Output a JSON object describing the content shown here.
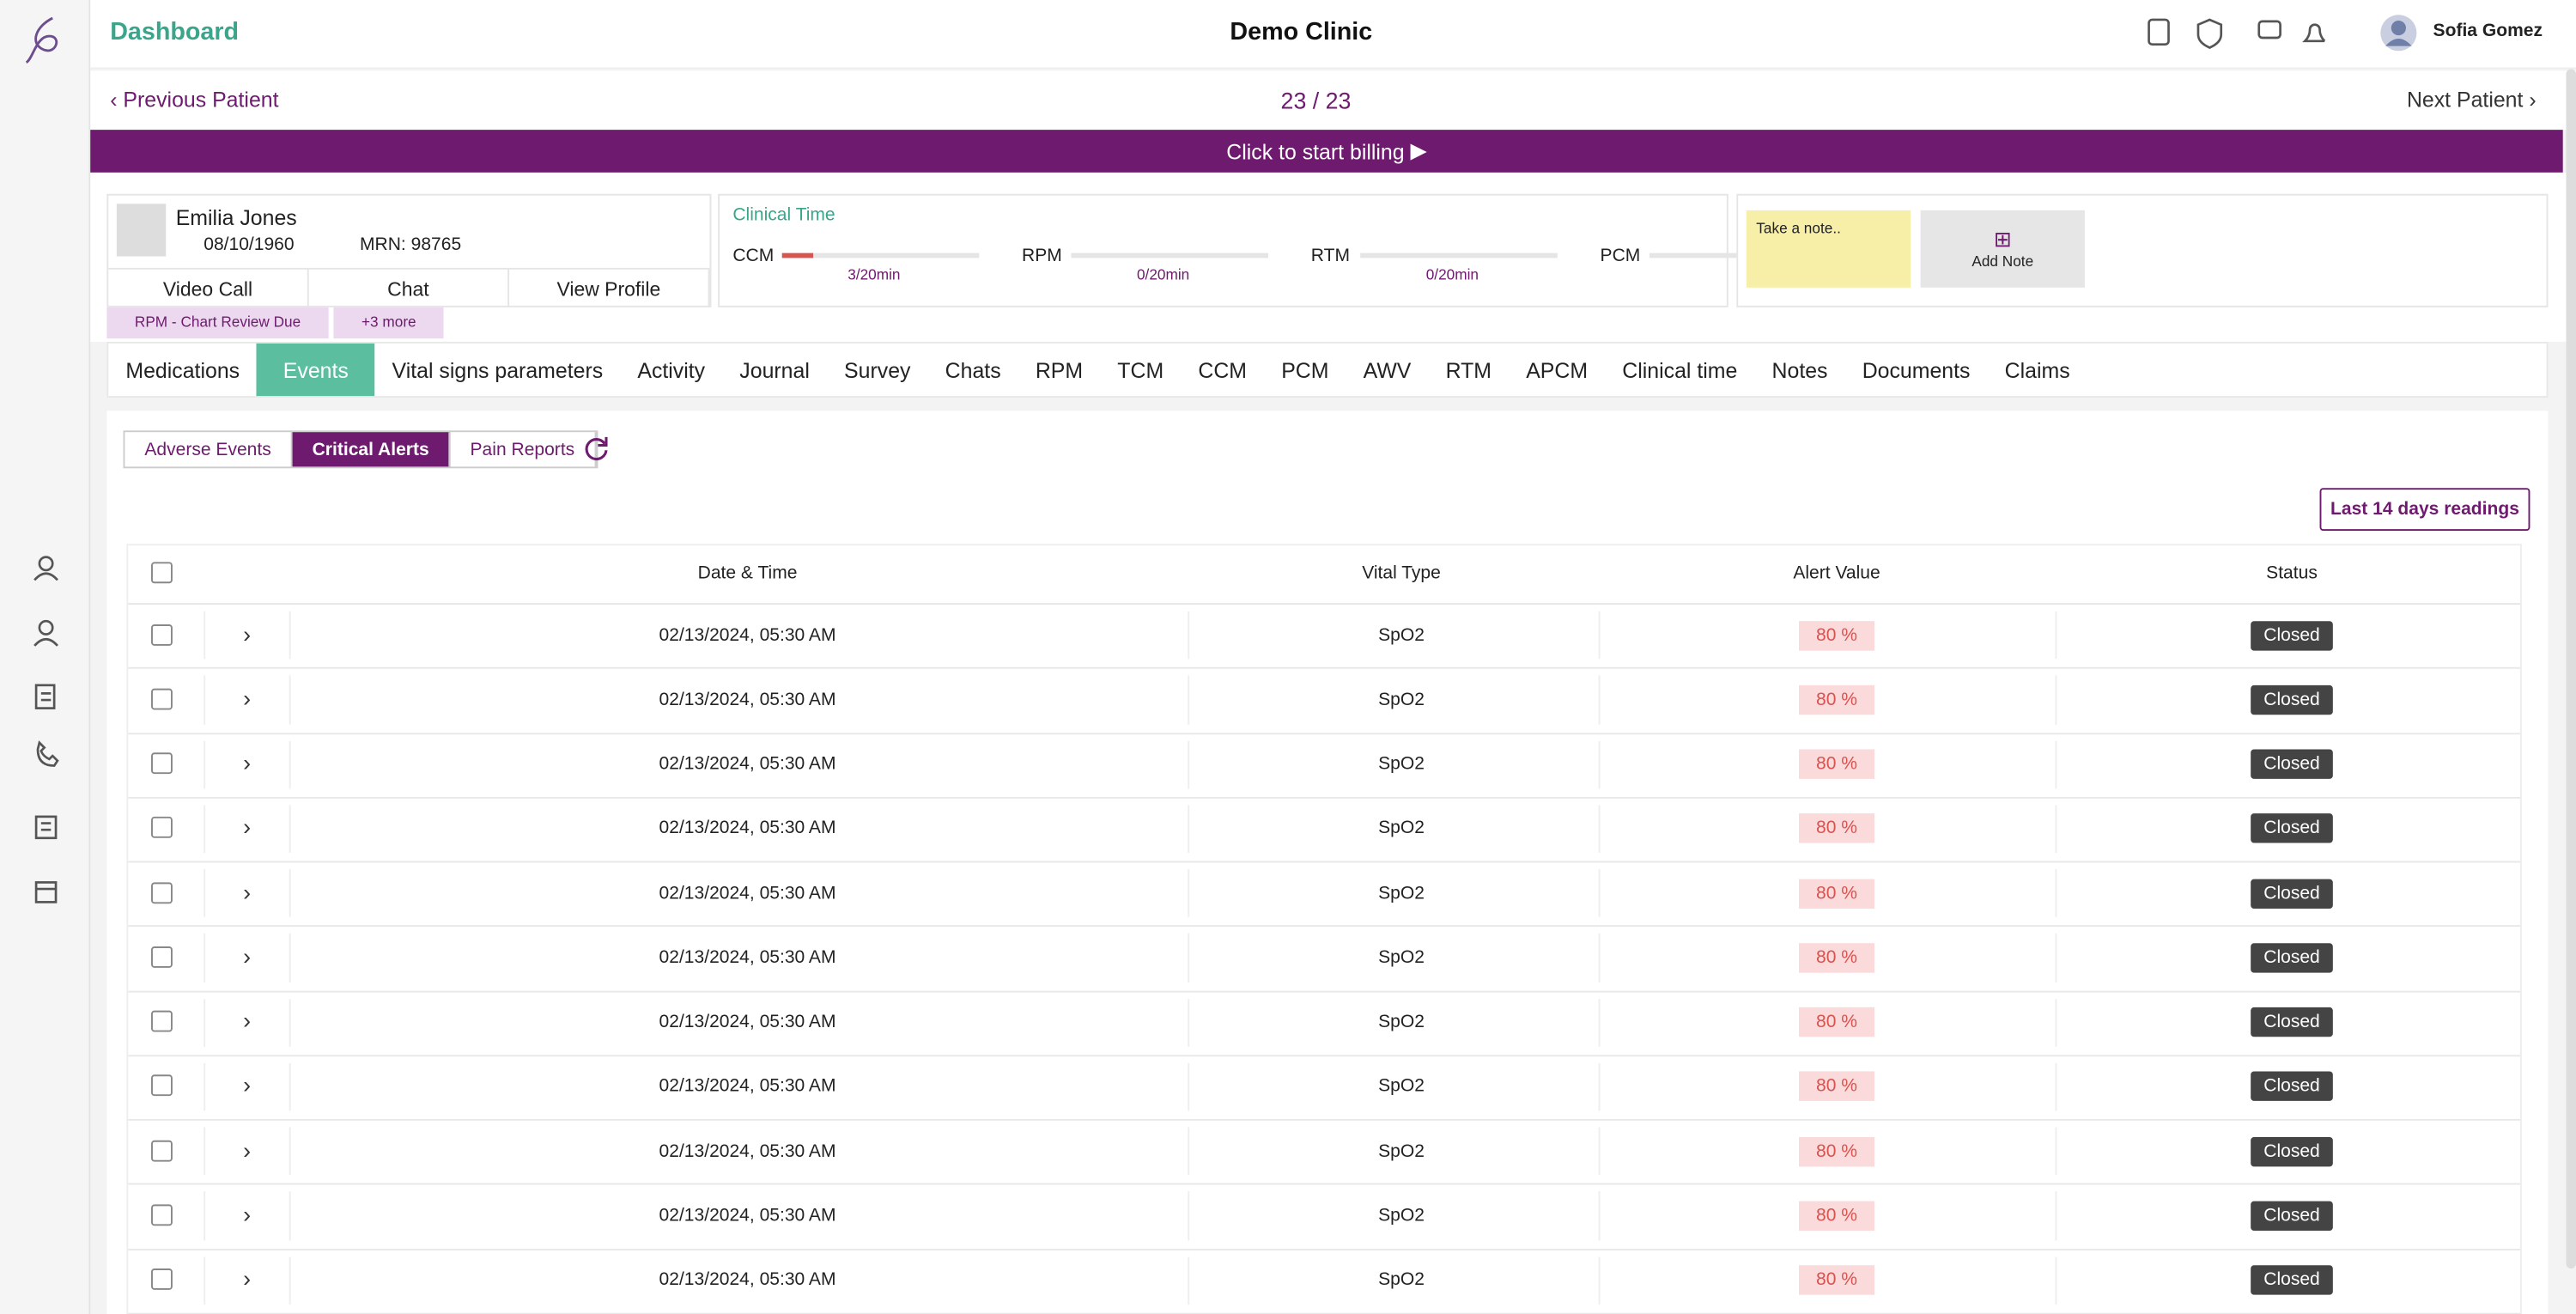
{
  "header": {
    "brand": "Dashboard",
    "clinic": "Demo Clinic",
    "user": "Sofia Gomez"
  },
  "navigation": {
    "previous": "Previous Patient",
    "counter": "23 / 23",
    "next": "Next Patient"
  },
  "billing": "Click to start billing",
  "patient": {
    "name": "Emilia Jones",
    "dob": "08/10/1960",
    "mrn": "MRN: 98765",
    "actions": [
      "Video Call",
      "Chat",
      "View Profile"
    ],
    "tags": [
      "RPM - Chart Review Due",
      "+3 more"
    ]
  },
  "clinical_time": {
    "title": "Clinical Time",
    "programs": [
      {
        "name": "CCM",
        "time": "3/20min"
      },
      {
        "name": "RPM",
        "time": "0/20min"
      },
      {
        "name": "RTM",
        "time": "0/20min"
      },
      {
        "name": "PCM",
        "time": null
      }
    ]
  },
  "notes": {
    "placeholder": "Take a note..",
    "add": "Add Note"
  },
  "tabs": {
    "items": [
      "Medications",
      "Events",
      "Vital signs parameters",
      "Activity",
      "Journal",
      "Survey",
      "Chats",
      "RPM",
      "TCM",
      "CCM",
      "PCM",
      "AWV",
      "RTM",
      "APCM",
      "Clinical time",
      "Notes",
      "Documents",
      "Claims"
    ],
    "active": 1
  },
  "subtabs": {
    "items": [
      "Adverse Events",
      "Critical Alerts",
      "Pain Reports"
    ],
    "active": 1
  },
  "readings_button": "Last 14 days readings",
  "table": {
    "columns": [
      "Date & Time",
      "Vital Type",
      "Alert Value",
      "Status"
    ],
    "rows": [
      [
        "02/13/2024, 05:30 AM",
        "SpO2",
        "80 %",
        "Closed"
      ],
      [
        "02/13/2024, 05:30 AM",
        "SpO2",
        "80 %",
        "Closed"
      ],
      [
        "02/13/2024, 05:30 AM",
        "SpO2",
        "80 %",
        "Closed"
      ],
      [
        "02/13/2024, 05:30 AM",
        "SpO2",
        "80 %",
        "Closed"
      ],
      [
        "02/13/2024, 05:30 AM",
        "SpO2",
        "80 %",
        "Closed"
      ],
      [
        "02/13/2024, 05:30 AM",
        "SpO2",
        "80 %",
        "Closed"
      ],
      [
        "02/13/2024, 05:30 AM",
        "SpO2",
        "80 %",
        "Closed"
      ],
      [
        "02/13/2024, 05:30 AM",
        "SpO2",
        "80 %",
        "Closed"
      ],
      [
        "02/13/2024, 05:30 AM",
        "SpO2",
        "80 %",
        "Closed"
      ],
      [
        "02/13/2024, 05:30 AM",
        "SpO2",
        "80 %",
        "Closed"
      ],
      [
        "02/13/2024, 05:30 AM",
        "SpO2",
        "80 %",
        "Closed"
      ]
    ]
  }
}
